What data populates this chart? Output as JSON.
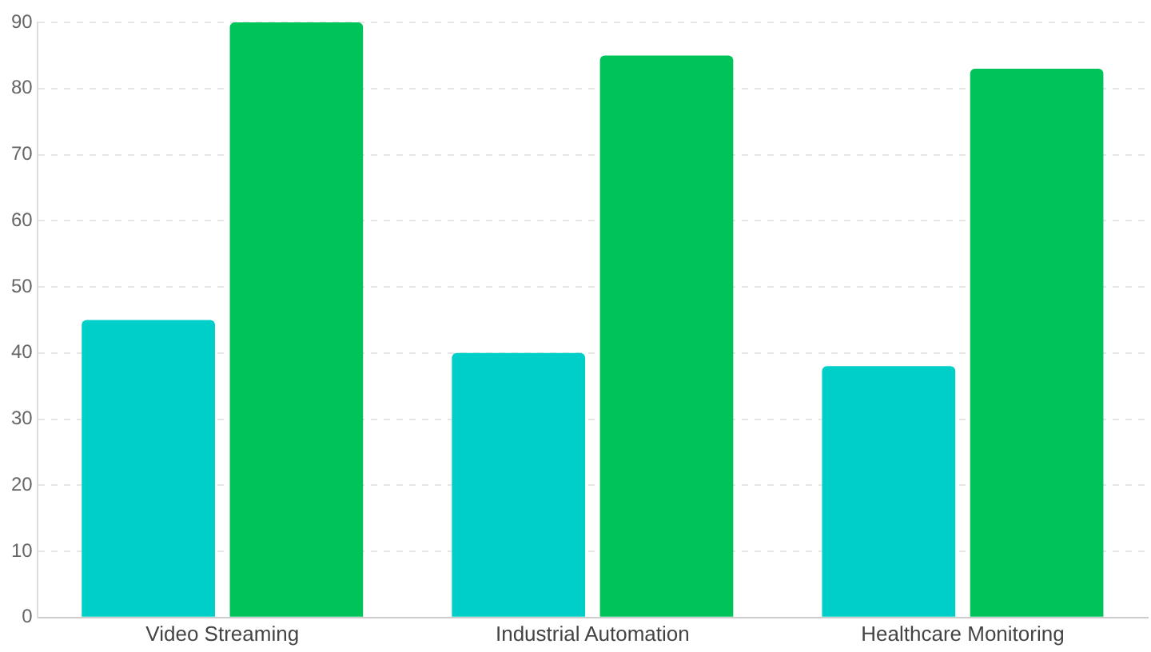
{
  "chart_data": {
    "type": "bar",
    "categories": [
      "Video Streaming",
      "Industrial Automation",
      "Healthcare Monitoring"
    ],
    "series": [
      {
        "color": "#00cec9",
        "values": [
          45,
          40,
          38
        ]
      },
      {
        "color": "#00c35a",
        "values": [
          90,
          85,
          83
        ]
      }
    ],
    "ylim": [
      0,
      90
    ],
    "yticks": [
      0,
      10,
      20,
      30,
      40,
      50,
      60,
      70,
      80,
      90
    ],
    "grid": "y",
    "legend": false
  }
}
